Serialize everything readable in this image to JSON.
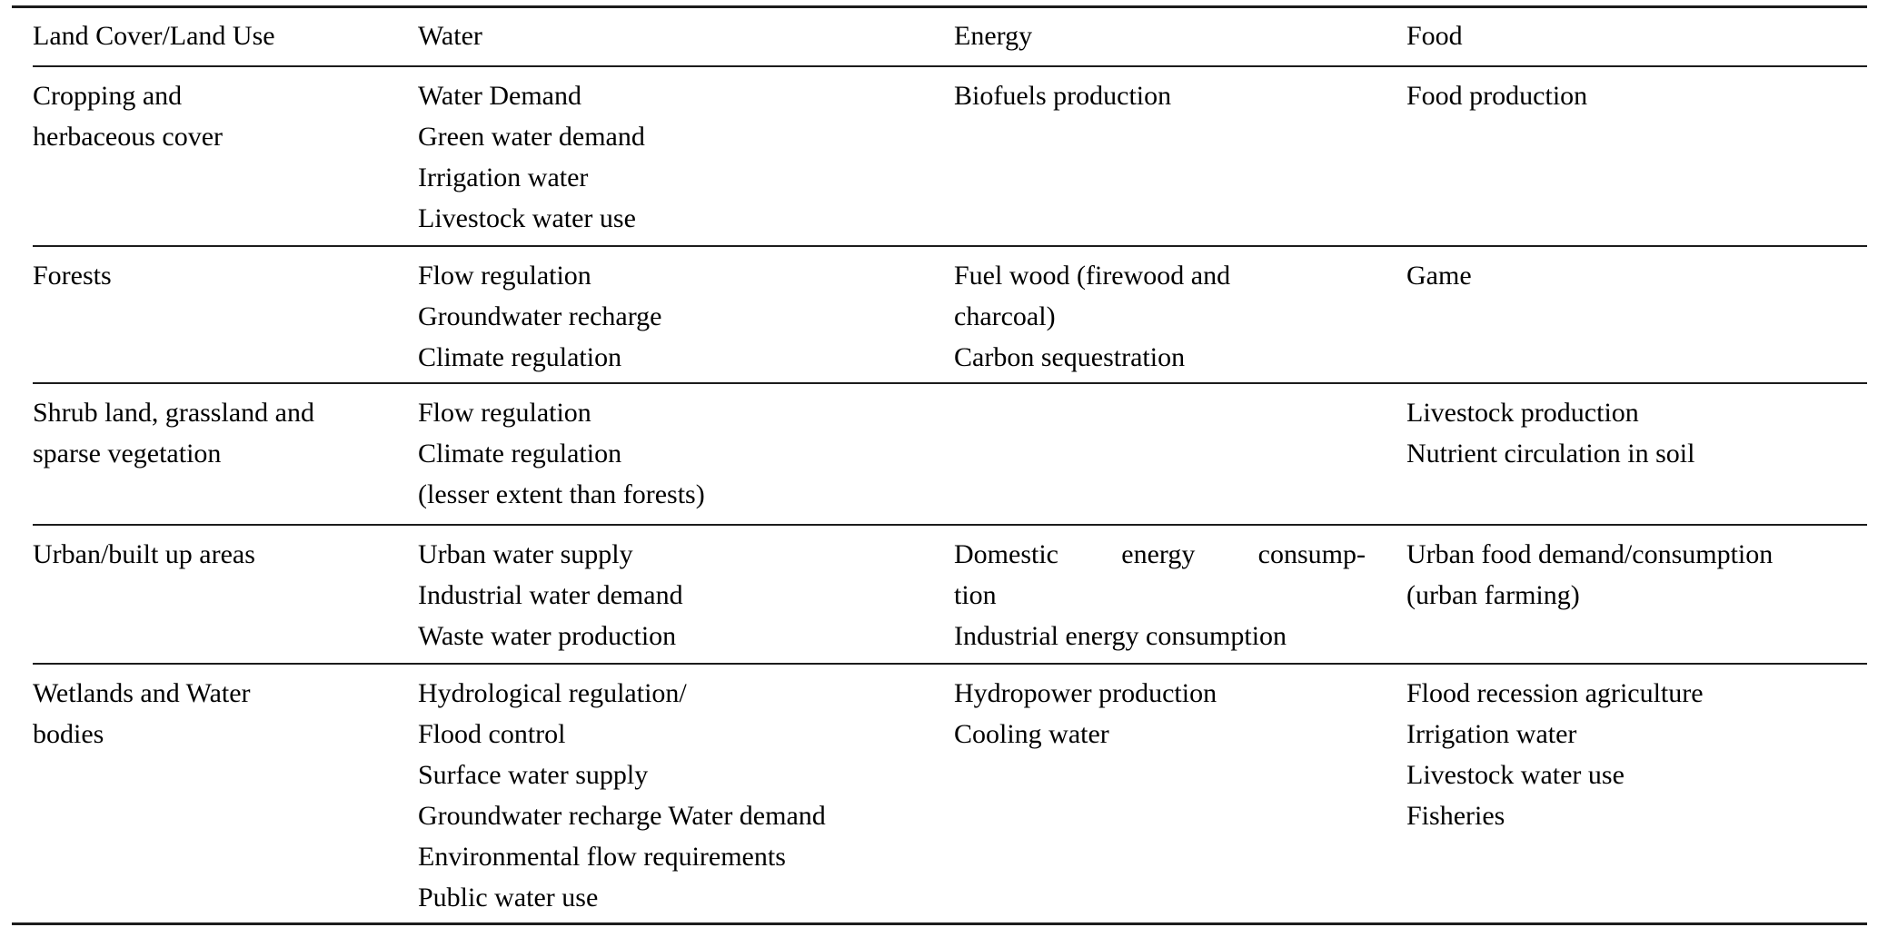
{
  "table": {
    "columns": [
      "Land Cover/Land Use",
      "Water",
      "Energy",
      "Food"
    ],
    "rows": [
      {
        "land_cover": [
          "Cropping and",
          "herbaceous cover"
        ],
        "water": [
          "Water Demand",
          "Green water demand",
          "Irrigation water",
          "Livestock water use"
        ],
        "energy": [
          "Biofuels production"
        ],
        "food": [
          "Food production"
        ]
      },
      {
        "land_cover": [
          "Forests"
        ],
        "water": [
          "Flow regulation",
          "Groundwater recharge",
          "Climate regulation"
        ],
        "energy": [
          "Fuel wood (firewood and",
          "charcoal)",
          "Carbon sequestration"
        ],
        "food": [
          "Game"
        ]
      },
      {
        "land_cover": [
          "Shrub land, grassland and",
          "sparse vegetation"
        ],
        "water": [
          "Flow regulation",
          "Climate regulation",
          "(lesser extent than forests)"
        ],
        "energy": [],
        "food": [
          "Livestock production",
          "Nutrient circulation in soil"
        ]
      },
      {
        "land_cover": [
          "Urban/built up areas"
        ],
        "water": [
          "Urban water supply",
          "Industrial water demand",
          "Waste water production"
        ],
        "energy": [
          "Domestic energy consump-",
          "tion",
          "Industrial energy consumption"
        ],
        "food": [
          "Urban food demand/consumption",
          "(urban farming)"
        ]
      },
      {
        "land_cover": [
          "Wetlands and Water",
          "bodies"
        ],
        "water": [
          "Hydrological regulation/",
          "Flood control",
          "Surface water supply",
          "Groundwater recharge Water demand",
          "Environmental flow requirements",
          "Public water use"
        ],
        "energy": [
          "Hydropower production",
          "Cooling water"
        ],
        "food": [
          "Flood recession agriculture",
          "Irrigation water",
          "Livestock water use",
          "Fisheries"
        ]
      }
    ],
    "colors": {
      "text": "#000000",
      "rule": "#1c1c1c",
      "background": "#ffffff"
    }
  }
}
